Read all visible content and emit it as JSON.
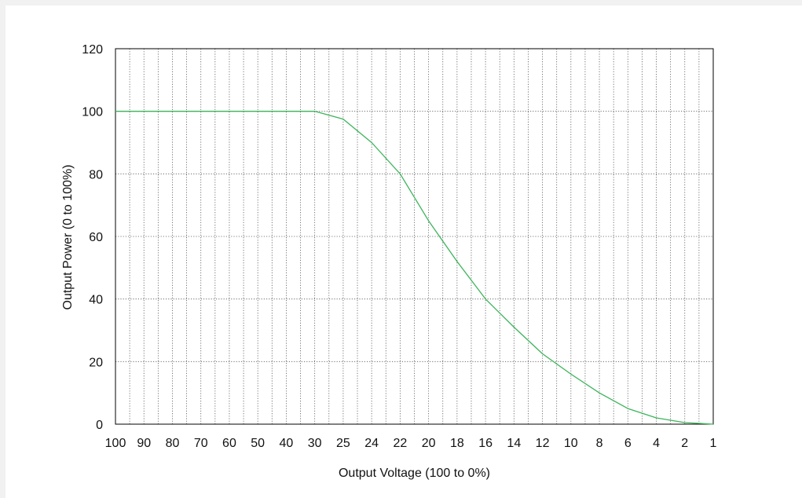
{
  "chart_data": {
    "type": "line",
    "xlabel": "Output Voltage (100 to 0%)",
    "ylabel": "Output Power  (0 to 100%)",
    "ylim": [
      0,
      120
    ],
    "y_ticks": [
      0,
      20,
      40,
      60,
      80,
      100,
      120
    ],
    "x_tick_labels": [
      "100",
      "90",
      "80",
      "70",
      "60",
      "50",
      "40",
      "30",
      "25",
      "24",
      "22",
      "20",
      "18",
      "16",
      "14",
      "12",
      "10",
      "8",
      "6",
      "4",
      "2",
      "1"
    ],
    "grid": true,
    "series": [
      {
        "color": "#3cb45a",
        "x": [
          "100",
          "90",
          "80",
          "70",
          "60",
          "50",
          "40",
          "30",
          "25",
          "24",
          "22",
          "20",
          "18",
          "16",
          "14",
          "12",
          "10",
          "8",
          "6",
          "4",
          "2",
          "1"
        ],
        "values": [
          100,
          100,
          100,
          100,
          100,
          100,
          100,
          100,
          97.5,
          90,
          80,
          65,
          52,
          40,
          31,
          22.5,
          16,
          10,
          5,
          2,
          0.5,
          0
        ]
      }
    ]
  }
}
